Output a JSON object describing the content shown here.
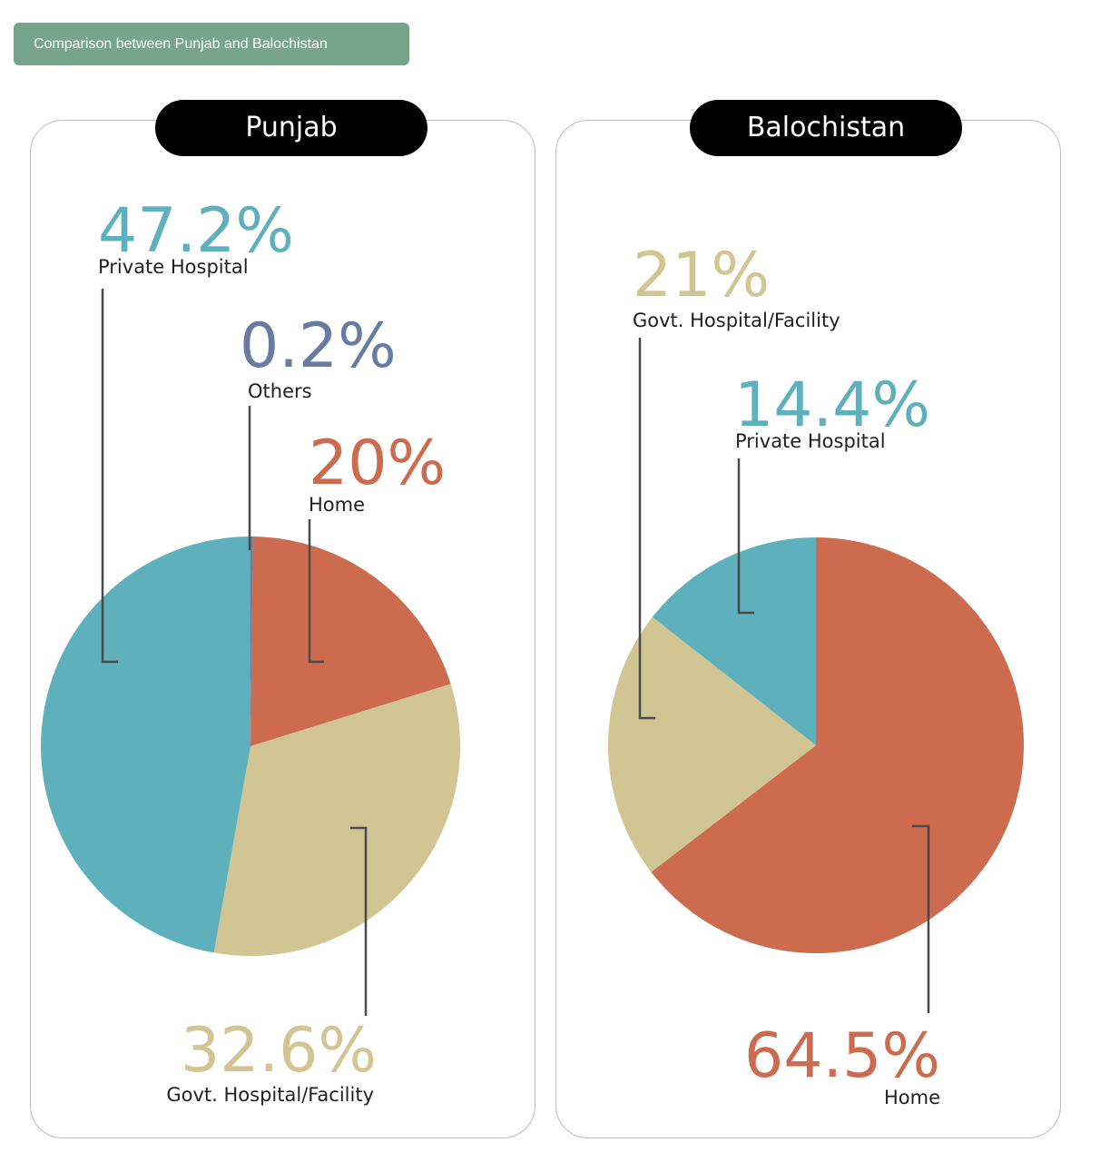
{
  "header": {
    "title": "Comparison between Punjab and Balochistan"
  },
  "colors": {
    "home": "#cc6b4d",
    "govt": "#d1c593",
    "private": "#5eb0bc",
    "others": "#6a7ba3"
  },
  "chart_data": [
    {
      "type": "pie",
      "title": "Punjab",
      "slices": [
        {
          "label": "Others",
          "value": 0.2,
          "display": "0.2%",
          "color": "#6a7ba3"
        },
        {
          "label": "Home",
          "value": 20,
          "display": "20%",
          "color": "#cc6b4d"
        },
        {
          "label": "Govt. Hospital/Facility",
          "value": 32.6,
          "display": "32.6%",
          "color": "#d1c593"
        },
        {
          "label": "Private Hospital",
          "value": 47.2,
          "display": "47.2%",
          "color": "#5eb0bc"
        }
      ]
    },
    {
      "type": "pie",
      "title": "Balochistan",
      "slices": [
        {
          "label": "Home",
          "value": 64.5,
          "display": "64.5%",
          "color": "#cc6b4d"
        },
        {
          "label": "Govt. Hospital/Facility",
          "value": 21,
          "display": "21%",
          "color": "#d1c593"
        },
        {
          "label": "Private Hospital",
          "value": 14.4,
          "display": "14.4%",
          "color": "#5eb0bc"
        }
      ]
    }
  ]
}
